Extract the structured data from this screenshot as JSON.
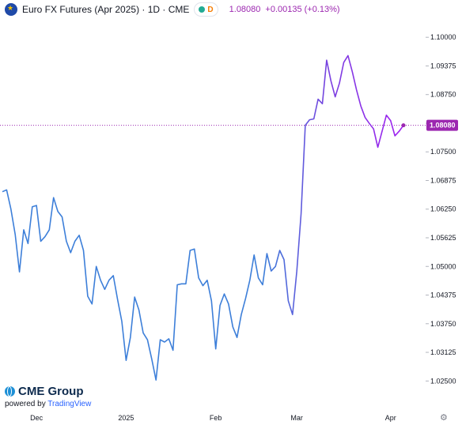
{
  "header": {
    "title": "Euro FX Futures (Apr 2025) · 1D · CME",
    "badge_letter": "D",
    "price": "1.08080",
    "change": "+0.00135 (+0.13%)"
  },
  "branding": {
    "logo": "CME Group",
    "powered_prefix": "powered by ",
    "powered_brand": "TradingView"
  },
  "colors": {
    "line_start": "#3d7fd9",
    "line_end": "#a020f0",
    "last_tag": "#9c27b0"
  },
  "chart_data": {
    "type": "line",
    "series": [
      {
        "values": [
          1.0663,
          1.0667,
          1.0625,
          1.057,
          1.0488,
          1.058,
          1.055,
          1.063,
          1.0633,
          1.0555,
          1.0565,
          1.058,
          1.065,
          1.062,
          1.0608,
          1.0555,
          1.053,
          1.0555,
          1.0568,
          1.0535,
          1.0435,
          1.0418,
          1.05,
          1.047,
          1.045,
          1.047,
          1.048,
          1.0428,
          1.038,
          1.0295,
          1.0345,
          1.0433,
          1.0405,
          1.0355,
          1.034,
          1.0298,
          1.0252,
          1.034,
          1.0335,
          1.0342,
          1.0317,
          1.046,
          1.0462,
          1.0462,
          1.0535,
          1.0538,
          1.0475,
          1.0458,
          1.047,
          1.0425,
          1.032,
          1.0415,
          1.044,
          1.0418,
          1.0368,
          1.0345,
          1.0395,
          1.043,
          1.047,
          1.0525,
          1.0475,
          1.046,
          1.0528,
          1.049,
          1.05,
          1.0535,
          1.0515,
          1.0425,
          1.0395,
          1.049,
          1.0615,
          1.0808,
          1.082,
          1.0822,
          1.0865,
          1.0855,
          1.095,
          1.0905,
          1.087,
          1.09,
          1.0945,
          1.096,
          1.0925,
          1.0885,
          1.085,
          1.0825,
          1.0812,
          1.08,
          1.076,
          1.0795,
          1.083,
          1.0818,
          1.0785,
          1.0795,
          1.0808
        ]
      }
    ],
    "last_value": "1.08080",
    "y_ticks": [
      "1.10000",
      "1.09375",
      "1.08750",
      "1.08125",
      "1.07500",
      "1.06875",
      "1.06250",
      "1.05625",
      "1.05000",
      "1.04375",
      "1.03750",
      "1.03125",
      "1.02500"
    ],
    "x_labels": [
      {
        "label": "Dec",
        "index": 8
      },
      {
        "label": "2025",
        "index": 29
      },
      {
        "label": "Feb",
        "index": 50
      },
      {
        "label": "Mar",
        "index": 69
      },
      {
        "label": "Apr",
        "index": 91
      }
    ],
    "ylim": [
      1.0185,
      1.104
    ],
    "grid": false
  }
}
